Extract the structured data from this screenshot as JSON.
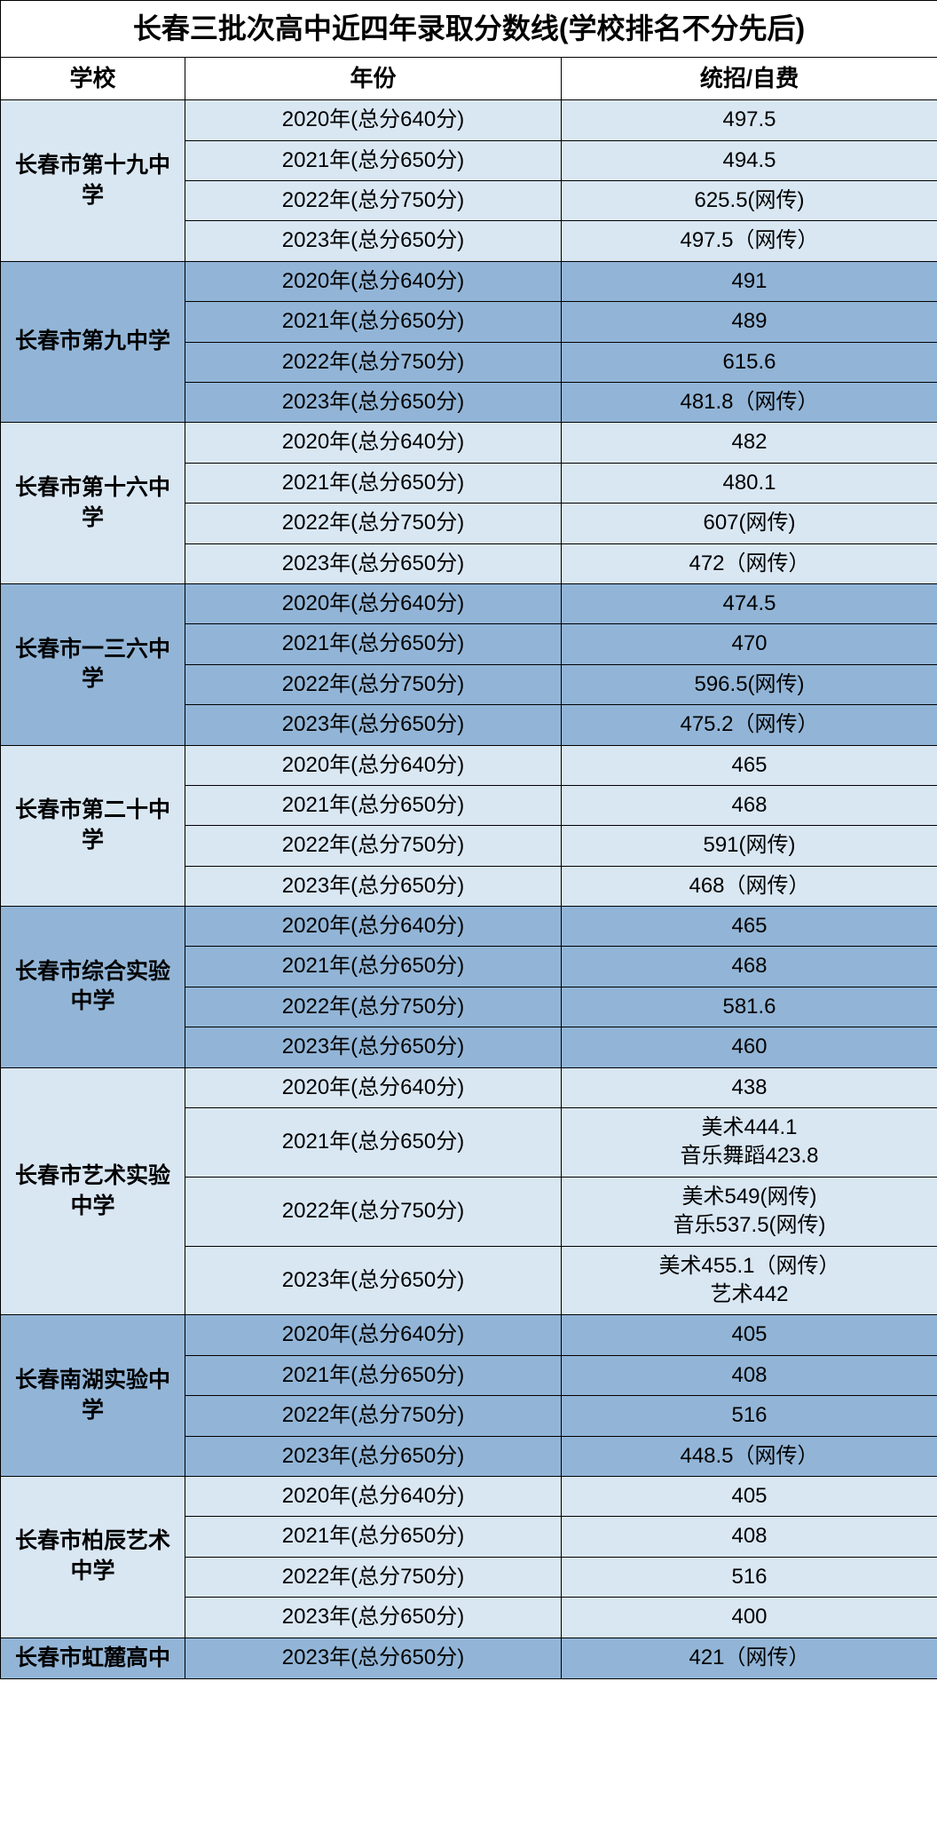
{
  "title": "长春三批次高中近四年录取分数线(学校排名不分先后)",
  "headers": {
    "school": "学校",
    "year": "年份",
    "score": "统招/自费"
  },
  "colors": {
    "light": "#d9e7f3",
    "dark": "#92b5d7",
    "white": "#ffffff",
    "border": "#000000"
  },
  "col_widths": {
    "school": 208,
    "year": 424,
    "score": 424
  },
  "schools": [
    {
      "name": "长春市第十九中学",
      "shade": "light",
      "rows": [
        {
          "year": "2020年(总分640分)",
          "score": "497.5"
        },
        {
          "year": "2021年(总分650分)",
          "score": "494.5"
        },
        {
          "year": "2022年(总分750分)",
          "score": "625.5(网传)"
        },
        {
          "year": "2023年(总分650分)",
          "score": "497.5（网传）"
        }
      ]
    },
    {
      "name": "长春市第九中学",
      "shade": "dark",
      "rows": [
        {
          "year": "2020年(总分640分)",
          "score": "491"
        },
        {
          "year": "2021年(总分650分)",
          "score": "489"
        },
        {
          "year": "2022年(总分750分)",
          "score": "615.6"
        },
        {
          "year": "2023年(总分650分)",
          "score": "481.8（网传）"
        }
      ]
    },
    {
      "name": "长春市第十六中学",
      "shade": "light",
      "rows": [
        {
          "year": "2020年(总分640分)",
          "score": "482"
        },
        {
          "year": "2021年(总分650分)",
          "score": "480.1"
        },
        {
          "year": "2022年(总分750分)",
          "score": "607(网传)"
        },
        {
          "year": "2023年(总分650分)",
          "score": "472（网传）"
        }
      ]
    },
    {
      "name": "长春市一三六中学",
      "shade": "dark",
      "rows": [
        {
          "year": "2020年(总分640分)",
          "score": "474.5"
        },
        {
          "year": "2021年(总分650分)",
          "score": "470"
        },
        {
          "year": "2022年(总分750分)",
          "score": "596.5(网传)"
        },
        {
          "year": "2023年(总分650分)",
          "score": "475.2（网传）"
        }
      ]
    },
    {
      "name": "长春市第二十中学",
      "shade": "light",
      "rows": [
        {
          "year": "2020年(总分640分)",
          "score": "465"
        },
        {
          "year": "2021年(总分650分)",
          "score": "468"
        },
        {
          "year": "2022年(总分750分)",
          "score": "591(网传)"
        },
        {
          "year": "2023年(总分650分)",
          "score": "468（网传）"
        }
      ]
    },
    {
      "name": "长春市综合实验中学",
      "shade": "dark",
      "rows": [
        {
          "year": "2020年(总分640分)",
          "score": "465"
        },
        {
          "year": "2021年(总分650分)",
          "score": "468"
        },
        {
          "year": "2022年(总分750分)",
          "score": "581.6"
        },
        {
          "year": "2023年(总分650分)",
          "score": "460"
        }
      ]
    },
    {
      "name": "长春市艺术实验中学",
      "shade": "light",
      "rows": [
        {
          "year": "2020年(总分640分)",
          "score": "438"
        },
        {
          "year": "2021年(总分650分)",
          "score": "美术444.1\n音乐舞蹈423.8"
        },
        {
          "year": "2022年(总分750分)",
          "score": "美术549(网传)\n音乐537.5(网传)"
        },
        {
          "year": "2023年(总分650分)",
          "score": "美术455.1（网传）\n艺术442"
        }
      ]
    },
    {
      "name": "长春南湖实验中学",
      "shade": "dark",
      "rows": [
        {
          "year": "2020年(总分640分)",
          "score": "405"
        },
        {
          "year": "2021年(总分650分)",
          "score": "408"
        },
        {
          "year": "2022年(总分750分)",
          "score": "516"
        },
        {
          "year": "2023年(总分650分)",
          "score": "448.5（网传）"
        }
      ]
    },
    {
      "name": "长春市柏辰艺术中学",
      "shade": "light",
      "rows": [
        {
          "year": "2020年(总分640分)",
          "score": "405"
        },
        {
          "year": "2021年(总分650分)",
          "score": "408"
        },
        {
          "year": "2022年(总分750分)",
          "score": "516"
        },
        {
          "year": "2023年(总分650分)",
          "score": "400"
        }
      ]
    },
    {
      "name": "长春市虹麓高中",
      "shade": "dark",
      "rows": [
        {
          "year": "2023年(总分650分)",
          "score": "421（网传）"
        }
      ]
    }
  ]
}
